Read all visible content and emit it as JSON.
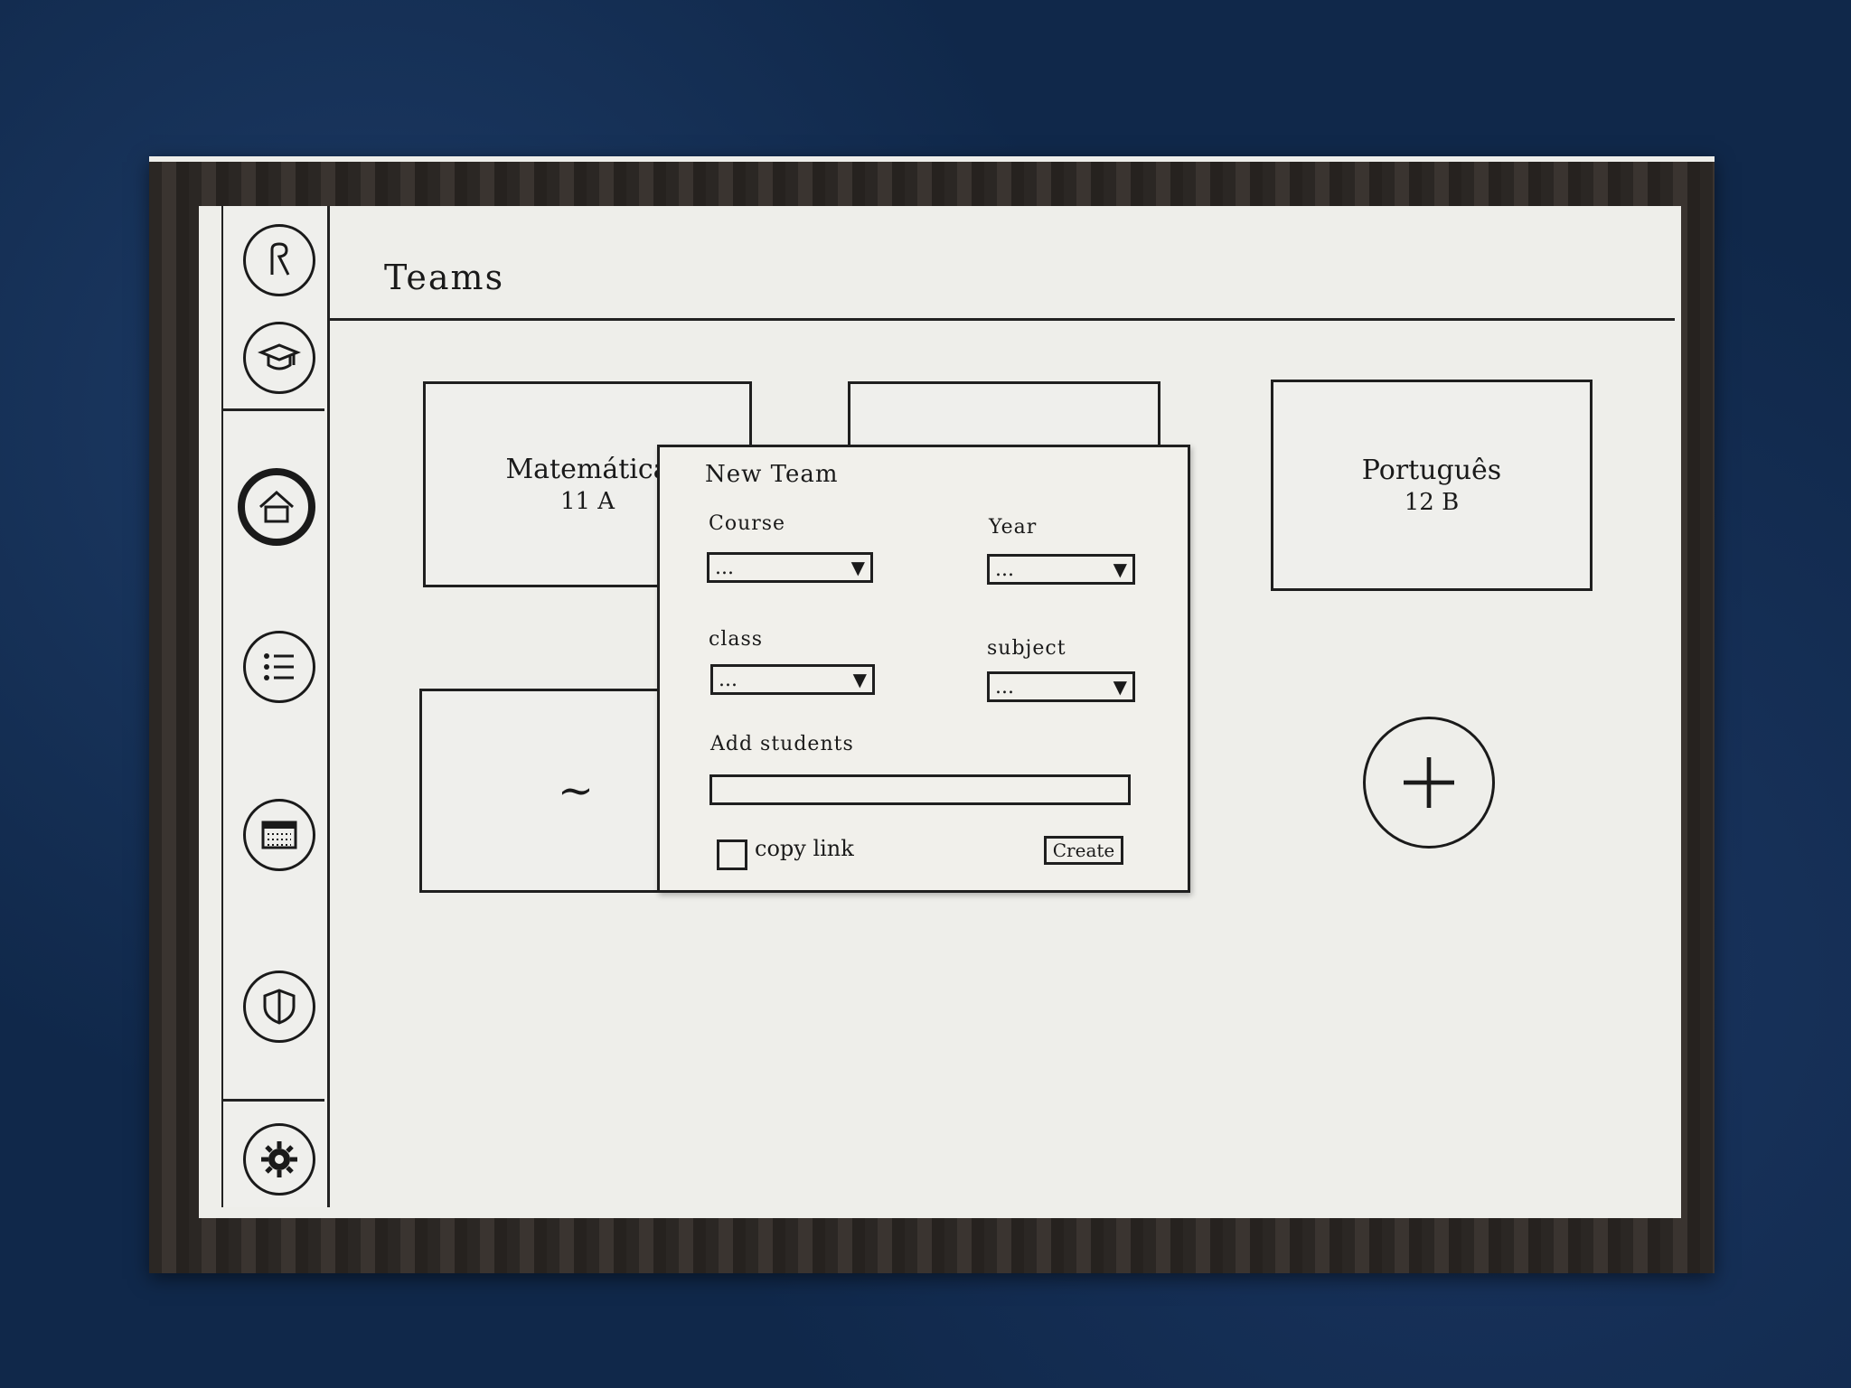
{
  "header": {
    "title": "Teams"
  },
  "sidebar": {
    "items": [
      {
        "icon": "user-icon"
      },
      {
        "icon": "graduation-cap-icon"
      },
      {
        "icon": "home-icon",
        "active": true
      },
      {
        "icon": "list-icon"
      },
      {
        "icon": "calendar-icon"
      },
      {
        "icon": "shield-icon"
      },
      {
        "icon": "gear-icon"
      }
    ]
  },
  "teams": [
    {
      "name": "Matemática",
      "class": "11 A"
    },
    {
      "name": "",
      "class": ""
    },
    {
      "name": "Português",
      "class": "12 B"
    },
    {
      "name": "~",
      "class": ""
    }
  ],
  "modal": {
    "title": "New Team",
    "course": {
      "label": "Course",
      "value": "..."
    },
    "year": {
      "label": "Year",
      "value": "..."
    },
    "class": {
      "label": "class",
      "value": "..."
    },
    "subject": {
      "label": "subject",
      "value": "..."
    },
    "add_students": {
      "label": "Add students",
      "value": ""
    },
    "copy_link": {
      "label": "copy link",
      "checked": false
    },
    "create_label": "Create"
  }
}
